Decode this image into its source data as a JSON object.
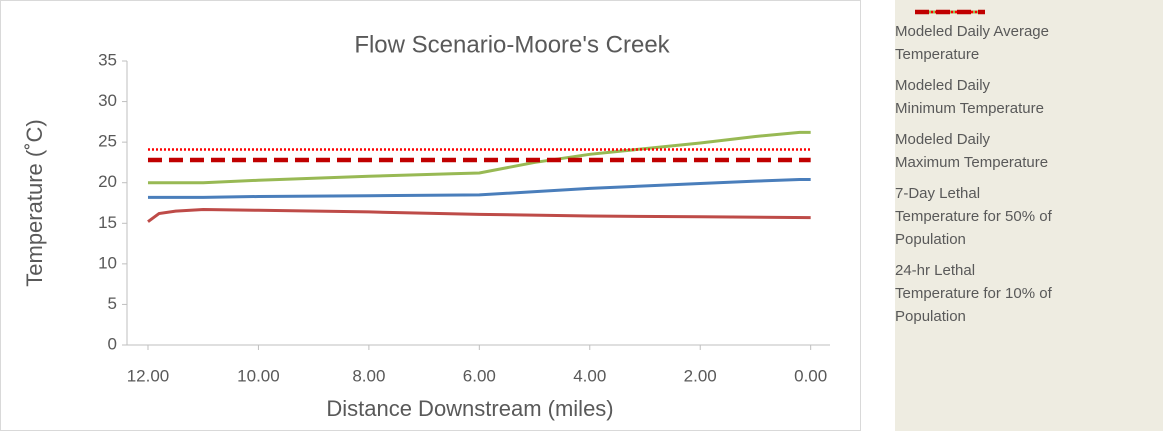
{
  "chart_data": {
    "type": "line",
    "title": "Flow Scenario-Moore's Creek",
    "xlabel": "Distance Downstream (miles)",
    "ylabel": "Temperature (˚C)",
    "xlim": [
      12.38,
      -0.35
    ],
    "xticks": [
      {
        "value": 12,
        "label": "12.00"
      },
      {
        "value": 10,
        "label": "10.00"
      },
      {
        "value": 8,
        "label": "8.00"
      },
      {
        "value": 6,
        "label": "6.00"
      },
      {
        "value": 4,
        "label": "4.00"
      },
      {
        "value": 2,
        "label": "2.00"
      },
      {
        "value": 0,
        "label": "0.00"
      }
    ],
    "ylim": [
      0,
      35
    ],
    "yticks": [
      0,
      5,
      10,
      15,
      20,
      25,
      30,
      35
    ],
    "legend": "right",
    "series": [
      {
        "name": "Modeled Daily Average Temperature",
        "color": "#4a7ebb",
        "dash": "solid",
        "x": [
          12,
          11,
          10,
          8,
          6,
          4,
          2,
          1,
          0.2,
          0
        ],
        "values": [
          18.2,
          18.2,
          18.3,
          18.4,
          18.5,
          19.3,
          19.9,
          20.2,
          20.4,
          20.4
        ]
      },
      {
        "name": "Modeled Daily Minimum Temperature",
        "color": "#be4b48",
        "dash": "solid",
        "x": [
          12,
          11.8,
          11.5,
          11,
          10,
          8,
          6,
          4,
          2,
          0
        ],
        "values": [
          15.2,
          16.2,
          16.5,
          16.7,
          16.6,
          16.4,
          16.1,
          15.9,
          15.8,
          15.7
        ]
      },
      {
        "name": "Modeled Daily Maximum Temperature",
        "color": "#98b954",
        "dash": "solid",
        "x": [
          12,
          11,
          10,
          8,
          6.5,
          6,
          5,
          4,
          2,
          1,
          0.2,
          0
        ],
        "values": [
          20.0,
          20.0,
          20.3,
          20.8,
          21.1,
          21.2,
          22.5,
          23.5,
          24.9,
          25.7,
          26.2,
          26.2
        ]
      },
      {
        "name": "7-Day Lethal Temperature for 50% of Population",
        "color": "#ff0000",
        "dash": "dotted",
        "x": [
          12,
          0
        ],
        "values": [
          24.1,
          24.1
        ]
      },
      {
        "name": "24-hr Lethal Temperature for 10% of Population",
        "color": "#c00000",
        "dash": "dashed",
        "x": [
          12,
          0
        ],
        "values": [
          22.8,
          22.8
        ]
      }
    ]
  }
}
